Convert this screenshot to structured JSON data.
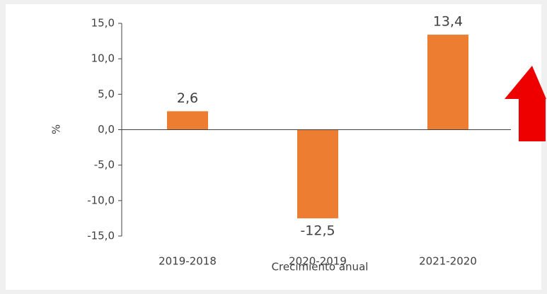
{
  "chart_data": {
    "type": "bar",
    "categories": [
      "2019-2018",
      "2020-2019",
      "2021-2020"
    ],
    "values": [
      2.6,
      -12.5,
      13.4
    ],
    "value_labels": [
      "2,6",
      "-12,5",
      "13,4"
    ],
    "color": "#ed7d31",
    "ylim": [
      -15,
      15
    ],
    "yticks": [
      {
        "value": -15,
        "label": "-15,0"
      },
      {
        "value": -10,
        "label": "-10,0"
      },
      {
        "value": -5,
        "label": "-5,0"
      },
      {
        "value": 0,
        "label": "0,0"
      },
      {
        "value": 5,
        "label": "5,0"
      },
      {
        "value": 10,
        "label": "10,0"
      },
      {
        "value": 15,
        "label": "15,0"
      }
    ],
    "y_label": "%",
    "x_label": "Crecimiento anual",
    "grid": false
  }
}
